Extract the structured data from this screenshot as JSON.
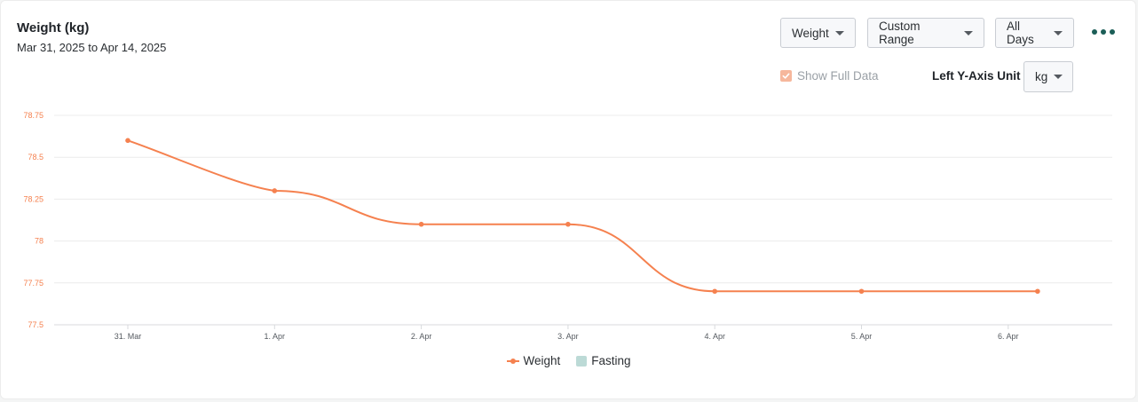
{
  "header": {
    "title": "Weight (kg)",
    "date_range": "Mar 31, 2025 to Apr 14, 2025"
  },
  "toolbar": {
    "metric_select": "Weight",
    "range_select": "Custom Range",
    "days_select": "All Days",
    "more_icon": "more-horizontal-icon"
  },
  "options": {
    "show_full_data_label": "Show Full Data",
    "show_full_data_checked": true,
    "left_axis_unit_label": "Left Y-Axis Unit",
    "left_axis_unit_value": "kg"
  },
  "colors": {
    "weight_series": "#f5814f",
    "fasting_series": "#bcdad6",
    "axis_labels": "#f5814f",
    "grid": "#ececec",
    "accent": "#1b5e57"
  },
  "chart_data": {
    "type": "line",
    "categories": [
      "31. Mar",
      "1. Apr",
      "2. Apr",
      "3. Apr",
      "4. Apr",
      "5. Apr",
      "6. Apr"
    ],
    "series": [
      {
        "name": "Weight",
        "values": [
          78.6,
          78.3,
          78.1,
          78.1,
          77.7,
          77.7,
          77.7
        ]
      }
    ],
    "x_last_point_offset_days": 0.2,
    "yticks": [
      "78.75",
      "78.5",
      "78.25",
      "78",
      "77.75",
      "77.5"
    ],
    "ylim": [
      77.5,
      78.75
    ],
    "grid": true,
    "legend": [
      {
        "name": "Weight",
        "type": "line"
      },
      {
        "name": "Fasting",
        "type": "bar"
      }
    ],
    "legend_position": "bottom"
  }
}
